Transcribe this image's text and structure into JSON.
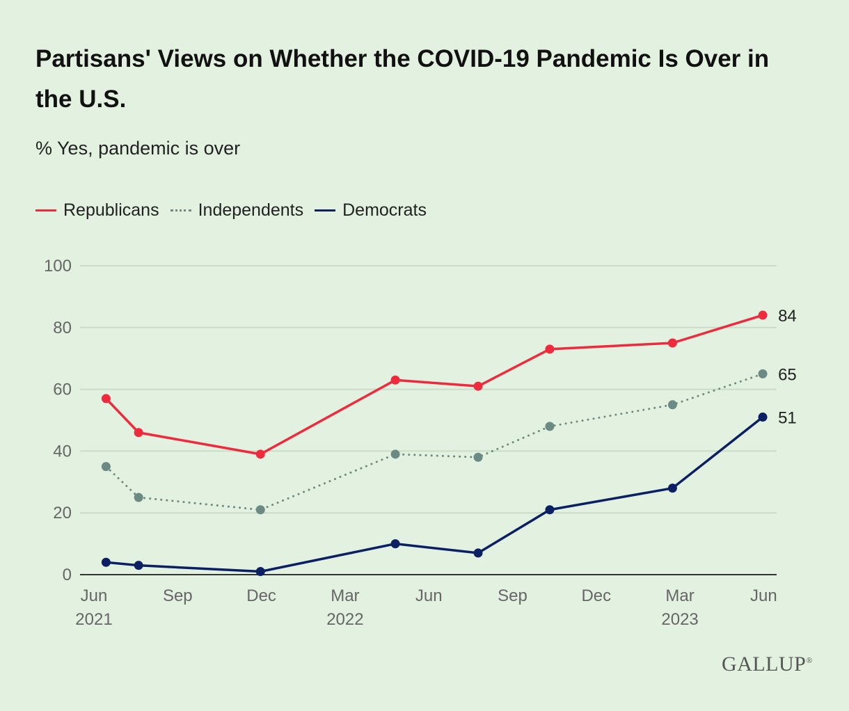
{
  "chart_data": {
    "type": "line",
    "title": "Partisans' Views on Whether the COVID-19 Pandemic Is Over in the U.S.",
    "subtitle": "% Yes, pandemic is over",
    "ylim": [
      0,
      100
    ],
    "yticks": [
      "0",
      "20",
      "40",
      "60",
      "80",
      "100"
    ],
    "ytick_values": [
      0,
      20,
      40,
      60,
      80,
      100
    ],
    "xticks": [
      {
        "date": "2021-06-01",
        "label": "Jun",
        "year": "2021"
      },
      {
        "date": "2021-09-01",
        "label": "Sep",
        "year": ""
      },
      {
        "date": "2021-12-01",
        "label": "Dec",
        "year": ""
      },
      {
        "date": "2022-03-01",
        "label": "Mar",
        "year": "2022"
      },
      {
        "date": "2022-06-01",
        "label": "Jun",
        "year": ""
      },
      {
        "date": "2022-09-01",
        "label": "Sep",
        "year": ""
      },
      {
        "date": "2022-12-01",
        "label": "Dec",
        "year": ""
      },
      {
        "date": "2023-03-01",
        "label": "Mar",
        "year": "2023"
      },
      {
        "date": "2023-06-01",
        "label": "Jun",
        "year": ""
      }
    ],
    "x": [
      "2021-06-14",
      "2021-07-19",
      "2021-11-30",
      "2022-04-25",
      "2022-07-24",
      "2022-10-11",
      "2023-02-23",
      "2023-05-30"
    ],
    "grid": true,
    "legend_position": "top-left",
    "series": [
      {
        "name": "Republicans",
        "color": "#ef2a3c",
        "style": "solid",
        "values": [
          57,
          46,
          39,
          63,
          61,
          73,
          75,
          84
        ],
        "end_label": "84"
      },
      {
        "name": "Independents",
        "color": "#6b8a84",
        "style": "dotted",
        "values": [
          35,
          25,
          21,
          39,
          38,
          48,
          55,
          65
        ],
        "end_label": "65"
      },
      {
        "name": "Democrats",
        "color": "#0b1f63",
        "style": "solid",
        "values": [
          4,
          3,
          1,
          10,
          7,
          21,
          28,
          51
        ],
        "end_label": "51"
      }
    ]
  },
  "source_logo": "GALLUP"
}
